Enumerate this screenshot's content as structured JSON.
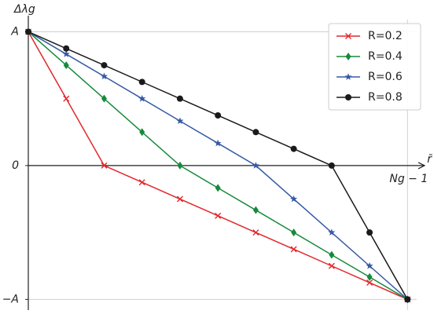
{
  "chart_data": {
    "type": "line",
    "y_label": "Δλg",
    "x_label": "r̄",
    "x": [
      0,
      1,
      2,
      3,
      4,
      5,
      6,
      7,
      8,
      9,
      10
    ],
    "xlim": [
      0,
      10.45
    ],
    "xticks": [
      {
        "value": 10,
        "label": "Ng − 1"
      }
    ],
    "ylim": [
      -1.08,
      1.12
    ],
    "yticks": [
      {
        "value": 1,
        "label": "A"
      },
      0,
      {
        "value": -1,
        "label": "−A"
      }
    ],
    "grid": true,
    "legend": "upper right",
    "series": [
      {
        "name": "R=0.2",
        "color": "#e3262b",
        "marker": "x",
        "values": [
          1,
          0.5,
          0,
          -0.125,
          -0.25,
          -0.375,
          -0.5,
          -0.625,
          -0.75,
          -0.875,
          -1
        ]
      },
      {
        "name": "R=0.4",
        "color": "#168a3c",
        "marker": "diamond",
        "values": [
          1,
          0.75,
          0.5,
          0.25,
          0,
          -0.167,
          -0.333,
          -0.5,
          -0.667,
          -0.833,
          -1
        ]
      },
      {
        "name": "R=0.6",
        "color": "#3659a6",
        "marker": "star",
        "values": [
          1,
          0.833,
          0.667,
          0.5,
          0.333,
          0.167,
          0,
          -0.25,
          -0.5,
          -0.75,
          -1
        ]
      },
      {
        "name": "R=0.8",
        "color": "#1a1a1a",
        "marker": "circle",
        "values": [
          1,
          0.875,
          0.75,
          0.625,
          0.5,
          0.375,
          0.25,
          0.125,
          0,
          -0.5,
          -1
        ]
      }
    ]
  }
}
